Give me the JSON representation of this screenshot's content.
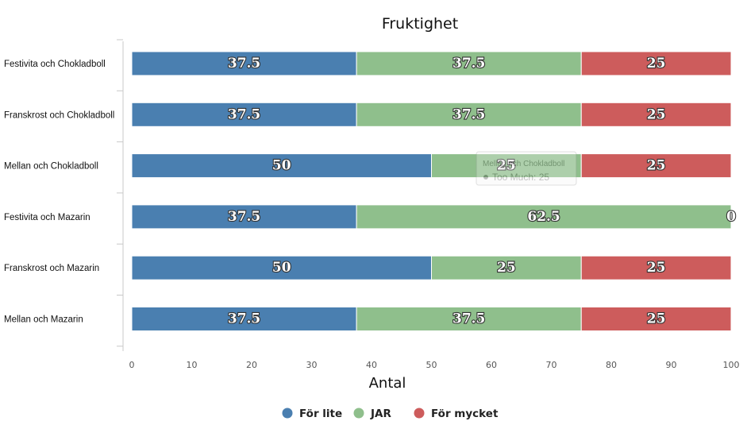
{
  "chart_data": {
    "type": "bar",
    "orientation": "horizontal",
    "stacked": true,
    "title": "Fruktighet",
    "xlabel": "Antal",
    "ylabel": "",
    "xlim": [
      0,
      100
    ],
    "xticks": [
      0,
      10,
      20,
      30,
      40,
      50,
      60,
      70,
      80,
      90,
      100
    ],
    "grid": false,
    "legend_position": "bottom",
    "categories": [
      "Festivita och Chokladboll",
      "Franskrost och Chokladboll",
      "Mellan och Chokladboll",
      "Festivita och Mazarin",
      "Franskrost och Mazarin",
      "Mellan och Mazarin"
    ],
    "series": [
      {
        "name": "För lite",
        "color": "#4a7fb0",
        "values": [
          37.5,
          37.5,
          50,
          37.5,
          50,
          37.5
        ]
      },
      {
        "name": "JAR",
        "color": "#8fbf8c",
        "values": [
          37.5,
          37.5,
          25,
          62.5,
          25,
          37.5
        ]
      },
      {
        "name": "För mycket",
        "color": "#cd5c5c",
        "values": [
          25,
          25,
          25,
          0,
          25,
          25
        ]
      }
    ],
    "tooltip": {
      "title": "Mellan och Chokladboll",
      "line": "Too Much: 25"
    }
  }
}
